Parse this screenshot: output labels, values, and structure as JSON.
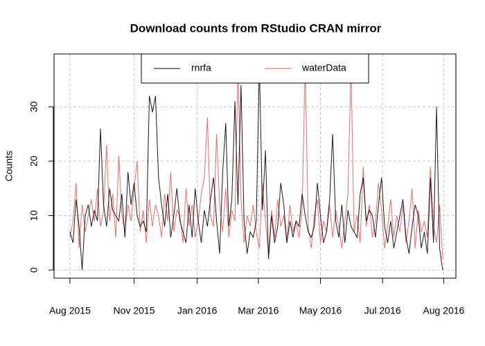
{
  "chart_data": {
    "type": "line",
    "title": "Download counts from RStudio CRAN mirror",
    "y_label": "Counts",
    "x": [
      0,
      3,
      6,
      9,
      12,
      15,
      18,
      21,
      24,
      27,
      30,
      33,
      36,
      39,
      42,
      45,
      48,
      51,
      54,
      57,
      60,
      63,
      66,
      69,
      72,
      75,
      78,
      81,
      84,
      87,
      90,
      93,
      96,
      99,
      102,
      105,
      108,
      111,
      114,
      117,
      120,
      123,
      126,
      129,
      132,
      135,
      138,
      141,
      144,
      147,
      150,
      153,
      156,
      159,
      162,
      165,
      168,
      171,
      174,
      177,
      180,
      183,
      186,
      189,
      192,
      195,
      198,
      201,
      204,
      207,
      210,
      213,
      216,
      219,
      222,
      225,
      228,
      231,
      234,
      237,
      240,
      243,
      246,
      249,
      252,
      255,
      258,
      261,
      264,
      267,
      270,
      273,
      276,
      279,
      282,
      285,
      288,
      291,
      294,
      297,
      300,
      303,
      306,
      309,
      312,
      315,
      318,
      321,
      324,
      327,
      330,
      333,
      336,
      339,
      342,
      345,
      348,
      351,
      354,
      357,
      360,
      363,
      366
    ],
    "series": [
      {
        "name": "rnrfa",
        "color": "#000000",
        "values": [
          7,
          5,
          13,
          8,
          0,
          10,
          12,
          8,
          11,
          9,
          26,
          12,
          8,
          15,
          11,
          10,
          9,
          14,
          6,
          18,
          12,
          16,
          10,
          8,
          9,
          7,
          32,
          29,
          32,
          17,
          12,
          8,
          14,
          6,
          10,
          15,
          9,
          7,
          5,
          12,
          6,
          15,
          9,
          5,
          11,
          8,
          13,
          17,
          9,
          3,
          18,
          27,
          8,
          13,
          31,
          12,
          34,
          9,
          3,
          7,
          6,
          9,
          38,
          11,
          22,
          2,
          10,
          5,
          8,
          16,
          12,
          5,
          9,
          6,
          9,
          8,
          14,
          10,
          7,
          6,
          8,
          16,
          10,
          5,
          7,
          13,
          25,
          9,
          6,
          12,
          5,
          11,
          8,
          7,
          6,
          14,
          17,
          9,
          11,
          10,
          6,
          12,
          17,
          8,
          5,
          9,
          4,
          7,
          10,
          13,
          6,
          3,
          8,
          12,
          10,
          4,
          7,
          3,
          17,
          5,
          30,
          4,
          0
        ]
      },
      {
        "name": "waterData",
        "color": "#f05050",
        "values": [
          6,
          9,
          16,
          4,
          12,
          7,
          10,
          13,
          9,
          15,
          8,
          11,
          23,
          9,
          14,
          6,
          21,
          10,
          7,
          12,
          9,
          15,
          20,
          7,
          11,
          5,
          13,
          8,
          12,
          10,
          6,
          14,
          9,
          18,
          7,
          11,
          10,
          5,
          15,
          8,
          12,
          6,
          9,
          14,
          17,
          28,
          10,
          8,
          25,
          12,
          7,
          15,
          6,
          11,
          9,
          38,
          13,
          5,
          10,
          8,
          12,
          7,
          4,
          16,
          9,
          3,
          11,
          6,
          13,
          8,
          10,
          5,
          12,
          7,
          9,
          6,
          11,
          38,
          8,
          4,
          10,
          13,
          5,
          9,
          7,
          12,
          6,
          11,
          8,
          4,
          9,
          14,
          38,
          7,
          10,
          5,
          19,
          8,
          12,
          6,
          9,
          16,
          11,
          4,
          8,
          13,
          6,
          10,
          7,
          12,
          5,
          9,
          15,
          4,
          11,
          7,
          9,
          6,
          19,
          8,
          5,
          12,
          2
        ]
      }
    ],
    "xlim": [
      -15.6,
      379
    ],
    "ylim": [
      -1.5,
      39.7
    ],
    "xticks": [
      {
        "value": 0,
        "label": "Aug 2015"
      },
      {
        "value": 63,
        "label": "Nov 2015"
      },
      {
        "value": 125,
        "label": "Jan 2016"
      },
      {
        "value": 185,
        "label": "Mar 2016"
      },
      {
        "value": 246,
        "label": "May 2016"
      },
      {
        "value": 307,
        "label": "Jul 2016"
      },
      {
        "value": 367,
        "label": "Aug 2016"
      }
    ],
    "yticks": [
      0,
      10,
      20,
      30
    ],
    "grid": true,
    "legend": "top"
  }
}
